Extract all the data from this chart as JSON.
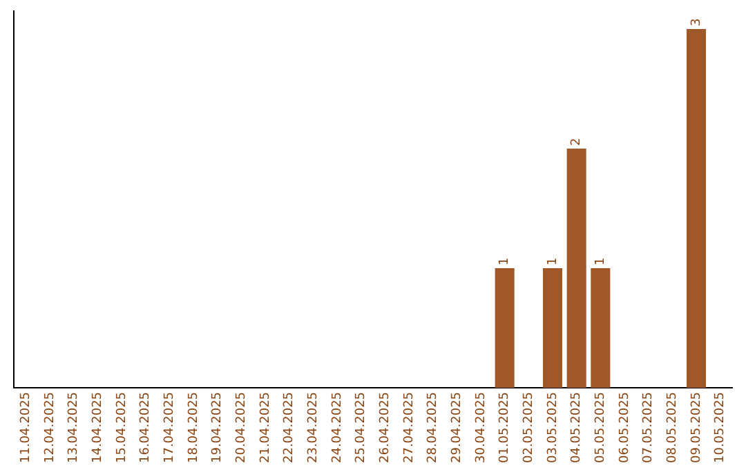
{
  "chart_data": {
    "type": "bar",
    "categories": [
      "11.04.2025",
      "12.04.2025",
      "13.04.2025",
      "14.04.2025",
      "15.04.2025",
      "16.04.2025",
      "17.04.2025",
      "18.04.2025",
      "19.04.2025",
      "20.04.2025",
      "21.04.2025",
      "22.04.2025",
      "23.04.2025",
      "24.04.2025",
      "25.04.2025",
      "26.04.2025",
      "27.04.2025",
      "28.04.2025",
      "29.04.2025",
      "30.04.2025",
      "01.05.2025",
      "02.05.2025",
      "03.05.2025",
      "04.05.2025",
      "05.05.2025",
      "06.05.2025",
      "07.05.2025",
      "08.05.2025",
      "09.05.2025",
      "10.05.2025"
    ],
    "values": [
      null,
      null,
      null,
      null,
      null,
      null,
      null,
      null,
      null,
      null,
      null,
      null,
      null,
      null,
      null,
      null,
      null,
      null,
      null,
      null,
      1,
      null,
      1,
      2,
      1,
      null,
      null,
      null,
      3,
      null
    ],
    "data_labels": true,
    "color": "#a0572a",
    "ylim": [
      0,
      3.15
    ],
    "tick_labels": "x",
    "grid": false,
    "legend": false
  }
}
